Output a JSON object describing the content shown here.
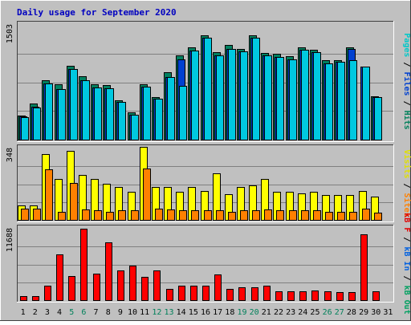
{
  "chart_data": {
    "type": "bar",
    "title": "Daily usage for September 2020",
    "categories": [
      "1",
      "2",
      "3",
      "4",
      "5",
      "6",
      "7",
      "8",
      "9",
      "10",
      "11",
      "12",
      "13",
      "14",
      "15",
      "16",
      "17",
      "18",
      "19",
      "20",
      "21",
      "22",
      "23",
      "24",
      "25",
      "26",
      "27",
      "28",
      "29",
      "30",
      "31"
    ],
    "weekend_days": [
      "5",
      "6",
      "12",
      "13",
      "19",
      "20",
      "26",
      "27"
    ],
    "panels": [
      {
        "id": "pages-files-hits",
        "ymax": 1503,
        "ymax_label": "1503",
        "right_labels": [
          {
            "text": "Pages",
            "color": "#00c8c8"
          },
          {
            "text": "Files",
            "color": "#0040d0"
          },
          {
            "text": "Hits",
            "color": "#00805a"
          }
        ],
        "separator": " / ",
        "series": [
          {
            "name": "Hits",
            "color": "#008060",
            "values": [
              320,
              470,
              780,
              720,
              970,
              830,
              720,
              710,
              520,
              360,
              730,
              560,
              880,
              1100,
              1210,
              1370,
              1150,
              1240,
              1190,
              1370,
              1140,
              1120,
              1090,
              1210,
              1180,
              1040,
              1040,
              1210,
              0,
              570,
              0
            ]
          },
          {
            "name": "Files",
            "color": "#0040d0",
            "values": [
              300,
              430,
              740,
              660,
              930,
              780,
              680,
              670,
              490,
              330,
              690,
              540,
              820,
              1050,
              1170,
              1330,
              1100,
              1190,
              1160,
              1330,
              1100,
              1080,
              1050,
              1180,
              1150,
              1000,
              1020,
              1190,
              960,
              560,
              0
            ]
          },
          {
            "name": "Pages",
            "color": "#00c8e0",
            "values": [
              290,
              420,
              740,
              660,
              930,
              780,
              680,
              670,
              490,
              330,
              690,
              540,
              820,
              700,
              1170,
              1330,
              1100,
              1190,
              1160,
              1330,
              1100,
              1080,
              1050,
              1180,
              1150,
              1000,
              1020,
              1040,
              960,
              560,
              0
            ]
          }
        ]
      },
      {
        "id": "visits-sites",
        "ymax": 348,
        "ymax_label": "348",
        "right_labels": [
          {
            "text": "Visits",
            "color": "#e0e000"
          },
          {
            "text": "Sites",
            "color": "#ff8000"
          }
        ],
        "separator": " / ",
        "series": [
          {
            "name": "Visits",
            "color": "#ffff00",
            "values": [
              70,
              70,
              320,
              200,
              335,
              220,
              200,
              175,
              160,
              135,
              355,
              160,
              160,
              135,
              160,
              140,
              225,
              125,
              160,
              170,
              200,
              135,
              135,
              130,
              135,
              120,
              120,
              120,
              140,
              115,
              0
            ]
          },
          {
            "name": "Sites",
            "color": "#ff8000",
            "values": [
              55,
              55,
              245,
              40,
              180,
              50,
              45,
              40,
              45,
              45,
              250,
              55,
              50,
              45,
              45,
              45,
              45,
              40,
              45,
              45,
              50,
              45,
              45,
              45,
              45,
              40,
              40,
              40,
              55,
              35,
              0
            ]
          }
        ]
      },
      {
        "id": "kbf-kbin-kbout",
        "ymax": 11688,
        "ymax_label": "11688",
        "right_labels": [
          {
            "text": "kB F",
            "color": "#e00000"
          },
          {
            "text": "kB In",
            "color": "#0060e0"
          },
          {
            "text": "kB Out",
            "color": "#00a060"
          }
        ],
        "separator": " / ",
        "series": [
          {
            "name": "kB F",
            "color": "#ff0000",
            "values": [
              700,
              700,
              2300,
              7500,
              3900,
              11688,
              4300,
              9400,
              4800,
              5600,
              3800,
              4900,
              1800,
              2400,
              2400,
              2300,
              4200,
              1900,
              2100,
              2100,
              2400,
              1500,
              1400,
              1500,
              1600,
              1500,
              1300,
              1300,
              10800,
              1400,
              0
            ]
          }
        ]
      }
    ]
  }
}
